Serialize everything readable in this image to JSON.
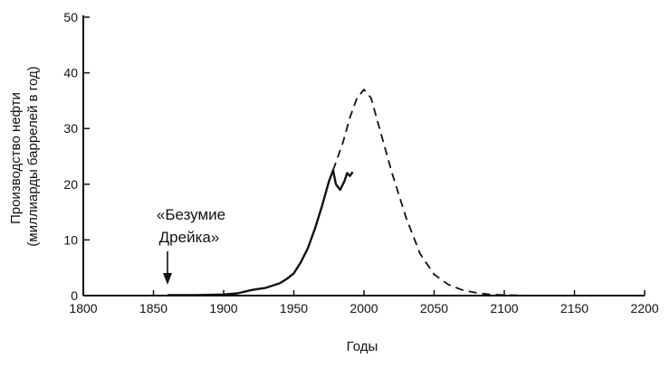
{
  "chart_data": {
    "type": "line",
    "title": "",
    "xlabel": "Годы",
    "ylabel_lines": [
      "Производство нефти",
      "(миллиарды баррелей в год)"
    ],
    "xlim": [
      1800,
      2200
    ],
    "ylim": [
      0,
      50
    ],
    "x_ticks": [
      1800,
      1850,
      1900,
      1950,
      2000,
      2050,
      2100,
      2150,
      2200
    ],
    "y_ticks": [
      0,
      10,
      20,
      30,
      40,
      50
    ],
    "grid": false,
    "series": [
      {
        "style": "solid",
        "color": "#111111",
        "points": [
          [
            1860,
            0.1
          ],
          [
            1880,
            0.1
          ],
          [
            1900,
            0.2
          ],
          [
            1910,
            0.4
          ],
          [
            1920,
            1.0
          ],
          [
            1930,
            1.4
          ],
          [
            1940,
            2.2
          ],
          [
            1945,
            3.0
          ],
          [
            1950,
            4.0
          ],
          [
            1955,
            6.0
          ],
          [
            1960,
            8.5
          ],
          [
            1965,
            12.0
          ],
          [
            1970,
            16.0
          ],
          [
            1975,
            20.5
          ],
          [
            1978,
            22.5
          ],
          [
            1980,
            20.0
          ],
          [
            1983,
            19.0
          ],
          [
            1986,
            20.5
          ],
          [
            1988,
            22.0
          ],
          [
            1990,
            21.5
          ],
          [
            1992,
            22.2
          ]
        ]
      },
      {
        "style": "dashed",
        "color": "#111111",
        "points": [
          [
            1978,
            22.5
          ],
          [
            1985,
            27.5
          ],
          [
            1990,
            32.0
          ],
          [
            1995,
            35.5
          ],
          [
            2000,
            37.0
          ],
          [
            2005,
            35.5
          ],
          [
            2010,
            31.0
          ],
          [
            2020,
            22.0
          ],
          [
            2030,
            14.0
          ],
          [
            2040,
            7.5
          ],
          [
            2050,
            3.8
          ],
          [
            2060,
            2.0
          ],
          [
            2070,
            1.0
          ],
          [
            2080,
            0.5
          ],
          [
            2090,
            0.2
          ],
          [
            2100,
            0.1
          ],
          [
            2120,
            0.0
          ],
          [
            2200,
            0.0
          ]
        ]
      }
    ],
    "annotations": [
      {
        "text_lines": [
          "«Безумие",
          "Дрейка»"
        ],
        "arrow_target": [
          1860,
          0.5
        ]
      }
    ]
  }
}
